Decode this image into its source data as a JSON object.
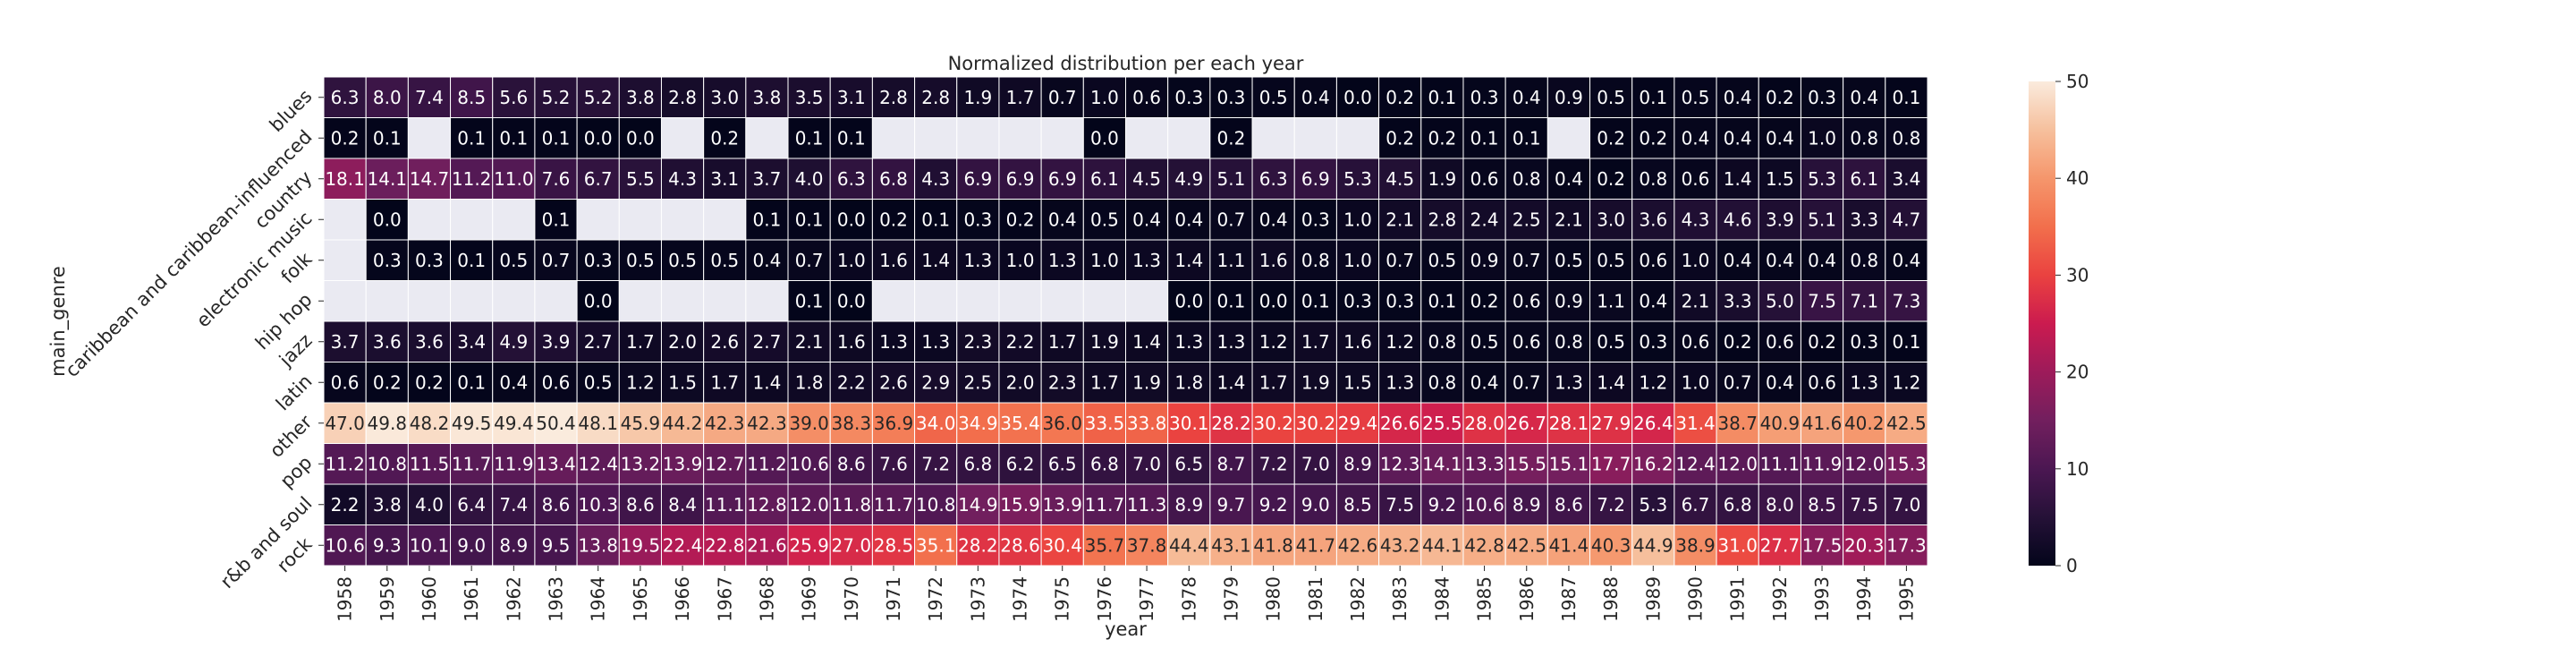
{
  "chart_data": {
    "type": "heatmap",
    "title": "Normalized distribution per each year",
    "xlabel": "year",
    "ylabel": "main_genre",
    "x": [
      "1958",
      "1959",
      "1960",
      "1961",
      "1962",
      "1963",
      "1964",
      "1965",
      "1966",
      "1967",
      "1968",
      "1969",
      "1970",
      "1971",
      "1972",
      "1973",
      "1974",
      "1975",
      "1976",
      "1977",
      "1978",
      "1979",
      "1980",
      "1981",
      "1982",
      "1983",
      "1984",
      "1985",
      "1986",
      "1987",
      "1988",
      "1989",
      "1990",
      "1991",
      "1992",
      "1993",
      "1994",
      "1995"
    ],
    "y": [
      "blues",
      "caribbean and caribbean-influenced",
      "country",
      "electronic music",
      "folk",
      "hip hop",
      "jazz",
      "latin",
      "other",
      "pop",
      "r&b and soul",
      "rock"
    ],
    "values": [
      [
        6.3,
        8.0,
        7.4,
        8.5,
        5.6,
        5.2,
        5.2,
        3.8,
        2.8,
        3.0,
        3.8,
        3.5,
        3.1,
        2.8,
        2.8,
        1.9,
        1.7,
        0.7,
        1.0,
        0.6,
        0.3,
        0.3,
        0.5,
        0.4,
        0.0,
        0.2,
        0.1,
        0.3,
        0.4,
        0.9,
        0.5,
        0.1,
        0.5,
        0.4,
        0.2,
        0.3,
        0.4,
        0.1
      ],
      [
        0.2,
        0.1,
        null,
        0.1,
        0.1,
        0.1,
        0.0,
        0.0,
        null,
        0.2,
        null,
        0.1,
        0.1,
        null,
        null,
        null,
        null,
        null,
        0.0,
        null,
        null,
        0.2,
        null,
        null,
        null,
        0.2,
        0.2,
        0.1,
        0.1,
        null,
        0.2,
        0.2,
        0.4,
        0.4,
        0.4,
        1.0,
        0.8,
        0.8
      ],
      [
        18.1,
        14.1,
        14.7,
        11.2,
        11.0,
        7.6,
        6.7,
        5.5,
        4.3,
        3.1,
        3.7,
        4.0,
        6.3,
        6.8,
        4.3,
        6.9,
        6.9,
        6.9,
        6.1,
        4.5,
        4.9,
        5.1,
        6.3,
        6.9,
        5.3,
        4.5,
        1.9,
        0.6,
        0.8,
        0.4,
        0.2,
        0.8,
        0.6,
        1.4,
        1.5,
        5.3,
        6.1,
        3.4
      ],
      [
        null,
        0.0,
        null,
        null,
        null,
        0.1,
        null,
        null,
        null,
        null,
        0.1,
        0.1,
        0.0,
        0.2,
        0.1,
        0.3,
        0.2,
        0.4,
        0.5,
        0.4,
        0.4,
        0.7,
        0.4,
        0.3,
        1.0,
        2.1,
        2.8,
        2.4,
        2.5,
        2.1,
        3.0,
        3.6,
        4.3,
        4.6,
        3.9,
        5.1,
        3.3,
        4.7
      ],
      [
        null,
        0.3,
        0.3,
        0.1,
        0.5,
        0.7,
        0.3,
        0.5,
        0.5,
        0.5,
        0.4,
        0.7,
        1.0,
        1.6,
        1.4,
        1.3,
        1.0,
        1.3,
        1.0,
        1.3,
        1.4,
        1.1,
        1.6,
        0.8,
        1.0,
        0.7,
        0.5,
        0.9,
        0.7,
        0.5,
        0.5,
        0.6,
        1.0,
        0.4,
        0.4,
        0.4,
        0.8,
        0.4
      ],
      [
        null,
        null,
        null,
        null,
        null,
        null,
        0.0,
        null,
        null,
        null,
        null,
        0.1,
        0.0,
        null,
        null,
        null,
        null,
        null,
        null,
        null,
        0.0,
        0.1,
        0.0,
        0.1,
        0.3,
        0.3,
        0.1,
        0.2,
        0.6,
        0.9,
        1.1,
        0.4,
        2.1,
        3.3,
        5.0,
        7.5,
        7.1,
        7.3
      ],
      [
        3.7,
        3.6,
        3.6,
        3.4,
        4.9,
        3.9,
        2.7,
        1.7,
        2.0,
        2.6,
        2.7,
        2.1,
        1.6,
        1.3,
        1.3,
        2.3,
        2.2,
        1.7,
        1.9,
        1.4,
        1.3,
        1.3,
        1.2,
        1.7,
        1.6,
        1.2,
        0.8,
        0.5,
        0.6,
        0.8,
        0.5,
        0.3,
        0.6,
        0.2,
        0.6,
        0.2,
        0.3,
        0.1
      ],
      [
        0.6,
        0.2,
        0.2,
        0.1,
        0.4,
        0.6,
        0.5,
        1.2,
        1.5,
        1.7,
        1.4,
        1.8,
        2.2,
        2.6,
        2.9,
        2.5,
        2.0,
        2.3,
        1.7,
        1.9,
        1.8,
        1.4,
        1.7,
        1.9,
        1.5,
        1.3,
        0.8,
        0.4,
        0.7,
        1.3,
        1.4,
        1.2,
        1.0,
        0.7,
        0.4,
        0.6,
        1.3,
        1.2
      ],
      [
        47.0,
        49.8,
        48.2,
        49.5,
        49.4,
        50.4,
        48.1,
        45.9,
        44.2,
        42.3,
        42.3,
        39.0,
        38.3,
        36.9,
        34.0,
        34.9,
        35.4,
        36.0,
        33.5,
        33.8,
        30.1,
        28.2,
        30.2,
        30.2,
        29.4,
        26.6,
        25.5,
        28.0,
        26.7,
        28.1,
        27.9,
        26.4,
        31.4,
        38.7,
        40.9,
        41.6,
        40.2,
        42.5
      ],
      [
        11.2,
        10.8,
        11.5,
        11.7,
        11.9,
        13.4,
        12.4,
        13.2,
        13.9,
        12.7,
        11.2,
        10.6,
        8.6,
        7.6,
        7.2,
        6.8,
        6.2,
        6.5,
        6.8,
        7.0,
        6.5,
        8.7,
        7.2,
        7.0,
        8.9,
        12.3,
        14.1,
        13.3,
        15.5,
        15.1,
        17.7,
        16.2,
        12.4,
        12.0,
        11.1,
        11.9,
        12.0,
        15.3
      ],
      [
        2.2,
        3.8,
        4.0,
        6.4,
        7.4,
        8.6,
        10.3,
        8.6,
        8.4,
        11.1,
        12.8,
        12.0,
        11.8,
        11.7,
        10.8,
        14.9,
        15.9,
        13.9,
        11.7,
        11.3,
        8.9,
        9.7,
        9.2,
        9.0,
        8.5,
        7.5,
        9.2,
        10.6,
        8.9,
        8.6,
        7.2,
        5.3,
        6.7,
        6.8,
        8.0,
        8.5,
        7.5,
        7.0
      ],
      [
        10.6,
        9.3,
        10.1,
        9.0,
        8.9,
        9.5,
        13.8,
        19.5,
        22.4,
        22.8,
        21.6,
        25.9,
        27.0,
        28.5,
        35.1,
        28.2,
        28.6,
        30.4,
        35.7,
        37.8,
        44.4,
        43.1,
        41.8,
        41.7,
        42.6,
        43.2,
        44.1,
        42.8,
        42.5,
        41.4,
        40.3,
        44.9,
        38.9,
        31.0,
        27.7,
        17.5,
        20.3,
        17.3
      ]
    ],
    "colorbar": {
      "ticks": [
        0,
        10,
        20,
        30,
        40,
        50
      ],
      "vmin": 0,
      "vmax": 50
    },
    "colormap": "rocket",
    "missing_color": "#eaeaf2",
    "value_format": "1 decimal"
  }
}
